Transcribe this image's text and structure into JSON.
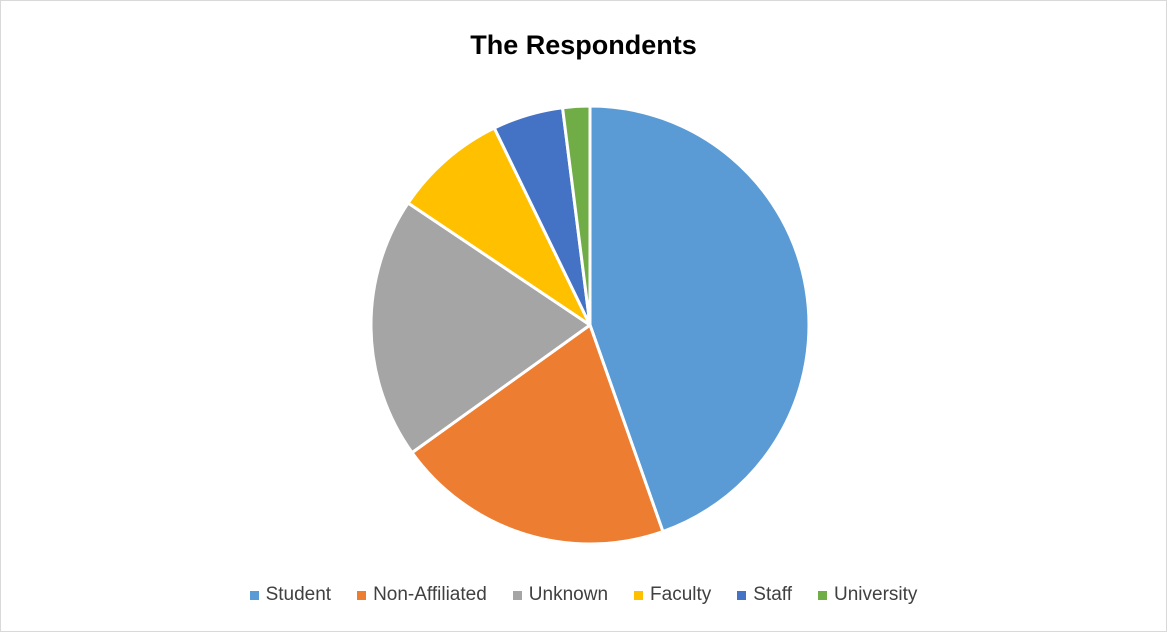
{
  "chart_data": {
    "type": "pie",
    "title": "The Respondents",
    "categories": [
      "Student",
      "Non-Affiliated",
      "Unknown",
      "Faculty",
      "Staff",
      "University"
    ],
    "values": [
      44.6,
      20.5,
      19.3,
      8.4,
      5.2,
      2.0
    ],
    "colors": [
      "#5b9bd5",
      "#ed7d31",
      "#a5a5a5",
      "#ffc000",
      "#4472c4",
      "#70ad47"
    ],
    "start_angle_deg": 0,
    "direction": "clockwise",
    "legend_position": "bottom"
  }
}
